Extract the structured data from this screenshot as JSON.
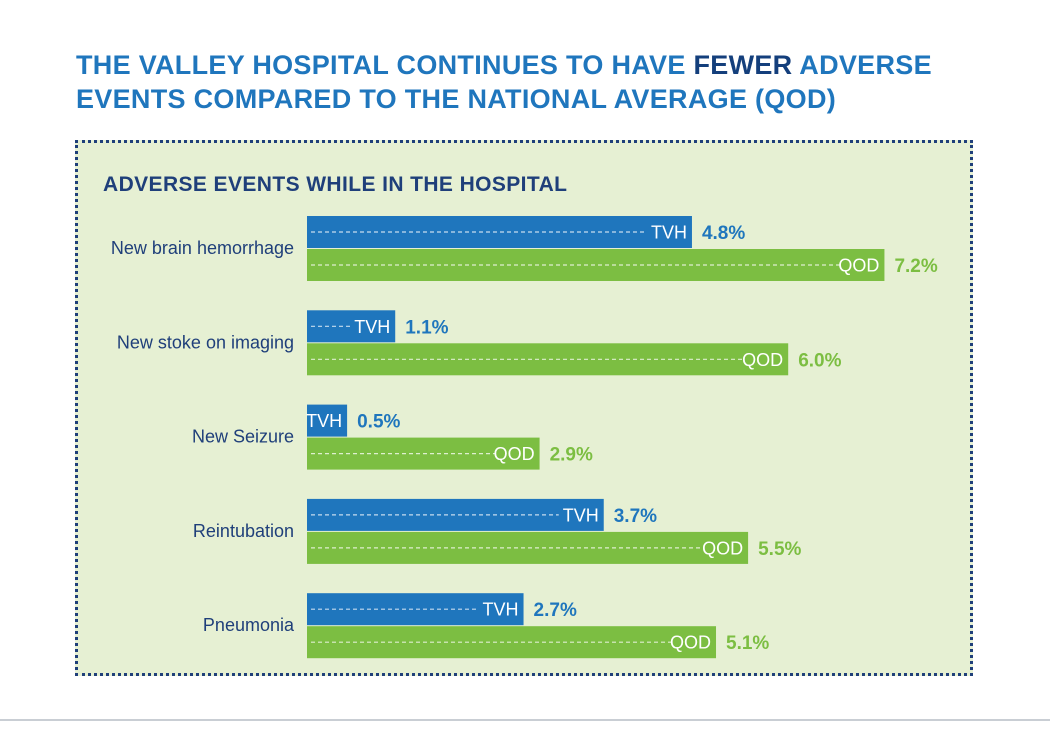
{
  "headline": {
    "part1": "THE VALLEY HOSPITAL CONTINUES TO HAVE ",
    "emphasis": "FEWER",
    "part2": " ADVERSE EVENTS COMPARED TO THE NATIONAL AVERAGE (QOD)"
  },
  "colors": {
    "title": "#1f76bd",
    "emphasis": "#143f7c",
    "panel_background": "#e6f0d3",
    "panel_border": "#1f3f7a",
    "tvh": "#1f76bd",
    "qod": "#7cbe42",
    "category_text": "#1f3f7a"
  },
  "chart_data": {
    "type": "bar",
    "orientation": "horizontal",
    "title": "ADVERSE EVENTS WHILE IN THE HOSPITAL",
    "categories": [
      "New brain hemorrhage",
      "New stoke on imaging",
      "New Seizure",
      "Reintubation",
      "Pneumonia"
    ],
    "series": [
      {
        "name": "TVH",
        "color": "#1f76bd",
        "values": [
          4.8,
          1.1,
          0.5,
          3.7,
          2.7
        ],
        "labels": [
          "4.8%",
          "1.1%",
          "0.5%",
          "3.7%",
          "2.7%"
        ]
      },
      {
        "name": "QOD",
        "color": "#7cbe42",
        "values": [
          7.2,
          6.0,
          2.9,
          5.5,
          5.1
        ],
        "labels": [
          "7.2%",
          "6.0%",
          "2.9%",
          "5.5%",
          "5.1%"
        ]
      }
    ],
    "xlabel": "",
    "ylabel": "",
    "grid": false,
    "legend": "none"
  }
}
